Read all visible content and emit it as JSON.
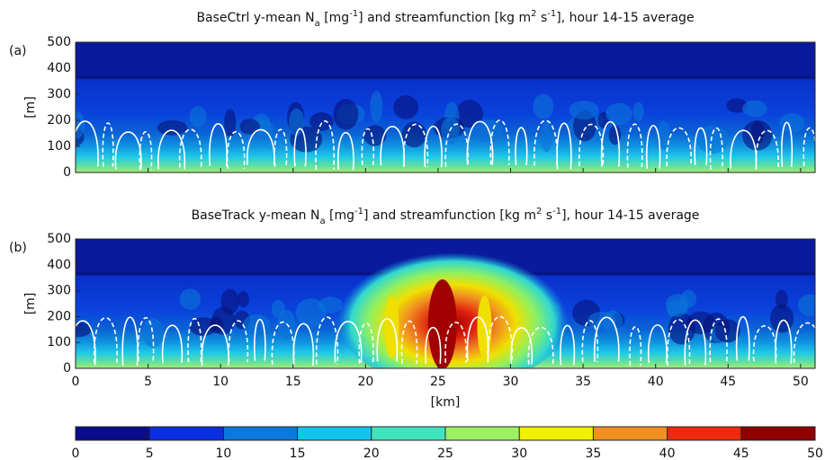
{
  "chart_data": [
    {
      "type": "heatmap",
      "panel_label": "(a)",
      "title_parts": [
        "BaseCtrl y-mean N",
        "a",
        " [mg",
        "-1",
        "] and streamfunction [kg m",
        "2",
        " s",
        "-1",
        "], hour 14-15 average"
      ],
      "ylabel": "[m]",
      "ylim": [
        0,
        500
      ],
      "yticks": [
        0,
        100,
        200,
        300,
        400,
        500
      ],
      "xlim": [
        0,
        51
      ],
      "xticks": [
        0,
        5,
        10,
        15,
        20,
        25,
        30,
        35,
        40,
        45,
        50
      ],
      "xtick_labels": false,
      "plume": false
    },
    {
      "type": "heatmap",
      "panel_label": "(b)",
      "title_parts": [
        "BaseTrack y-mean N",
        "a",
        " [mg",
        "-1",
        "] and streamfunction [kg m",
        "2",
        " s",
        "-1",
        "], hour 14-15 average"
      ],
      "ylabel": "[m]",
      "xlabel": "[km]",
      "ylim": [
        0,
        500
      ],
      "yticks": [
        0,
        100,
        200,
        300,
        400,
        500
      ],
      "xlim": [
        0,
        51
      ],
      "xticks": [
        0,
        5,
        10,
        15,
        20,
        25,
        30,
        35,
        40,
        45,
        50
      ],
      "xtick_labels": true,
      "plume": true
    },
    {
      "type": "colorbar",
      "lim": [
        0,
        50
      ],
      "ticks": [
        0,
        5,
        10,
        15,
        20,
        25,
        30,
        35,
        40,
        45,
        50
      ],
      "colors": [
        "#0a0c8c",
        "#0a2fe0",
        "#0a78dc",
        "#10c4ee",
        "#40e4bc",
        "#9cf064",
        "#f0f000",
        "#f09020",
        "#f02810",
        "#900000"
      ]
    }
  ]
}
